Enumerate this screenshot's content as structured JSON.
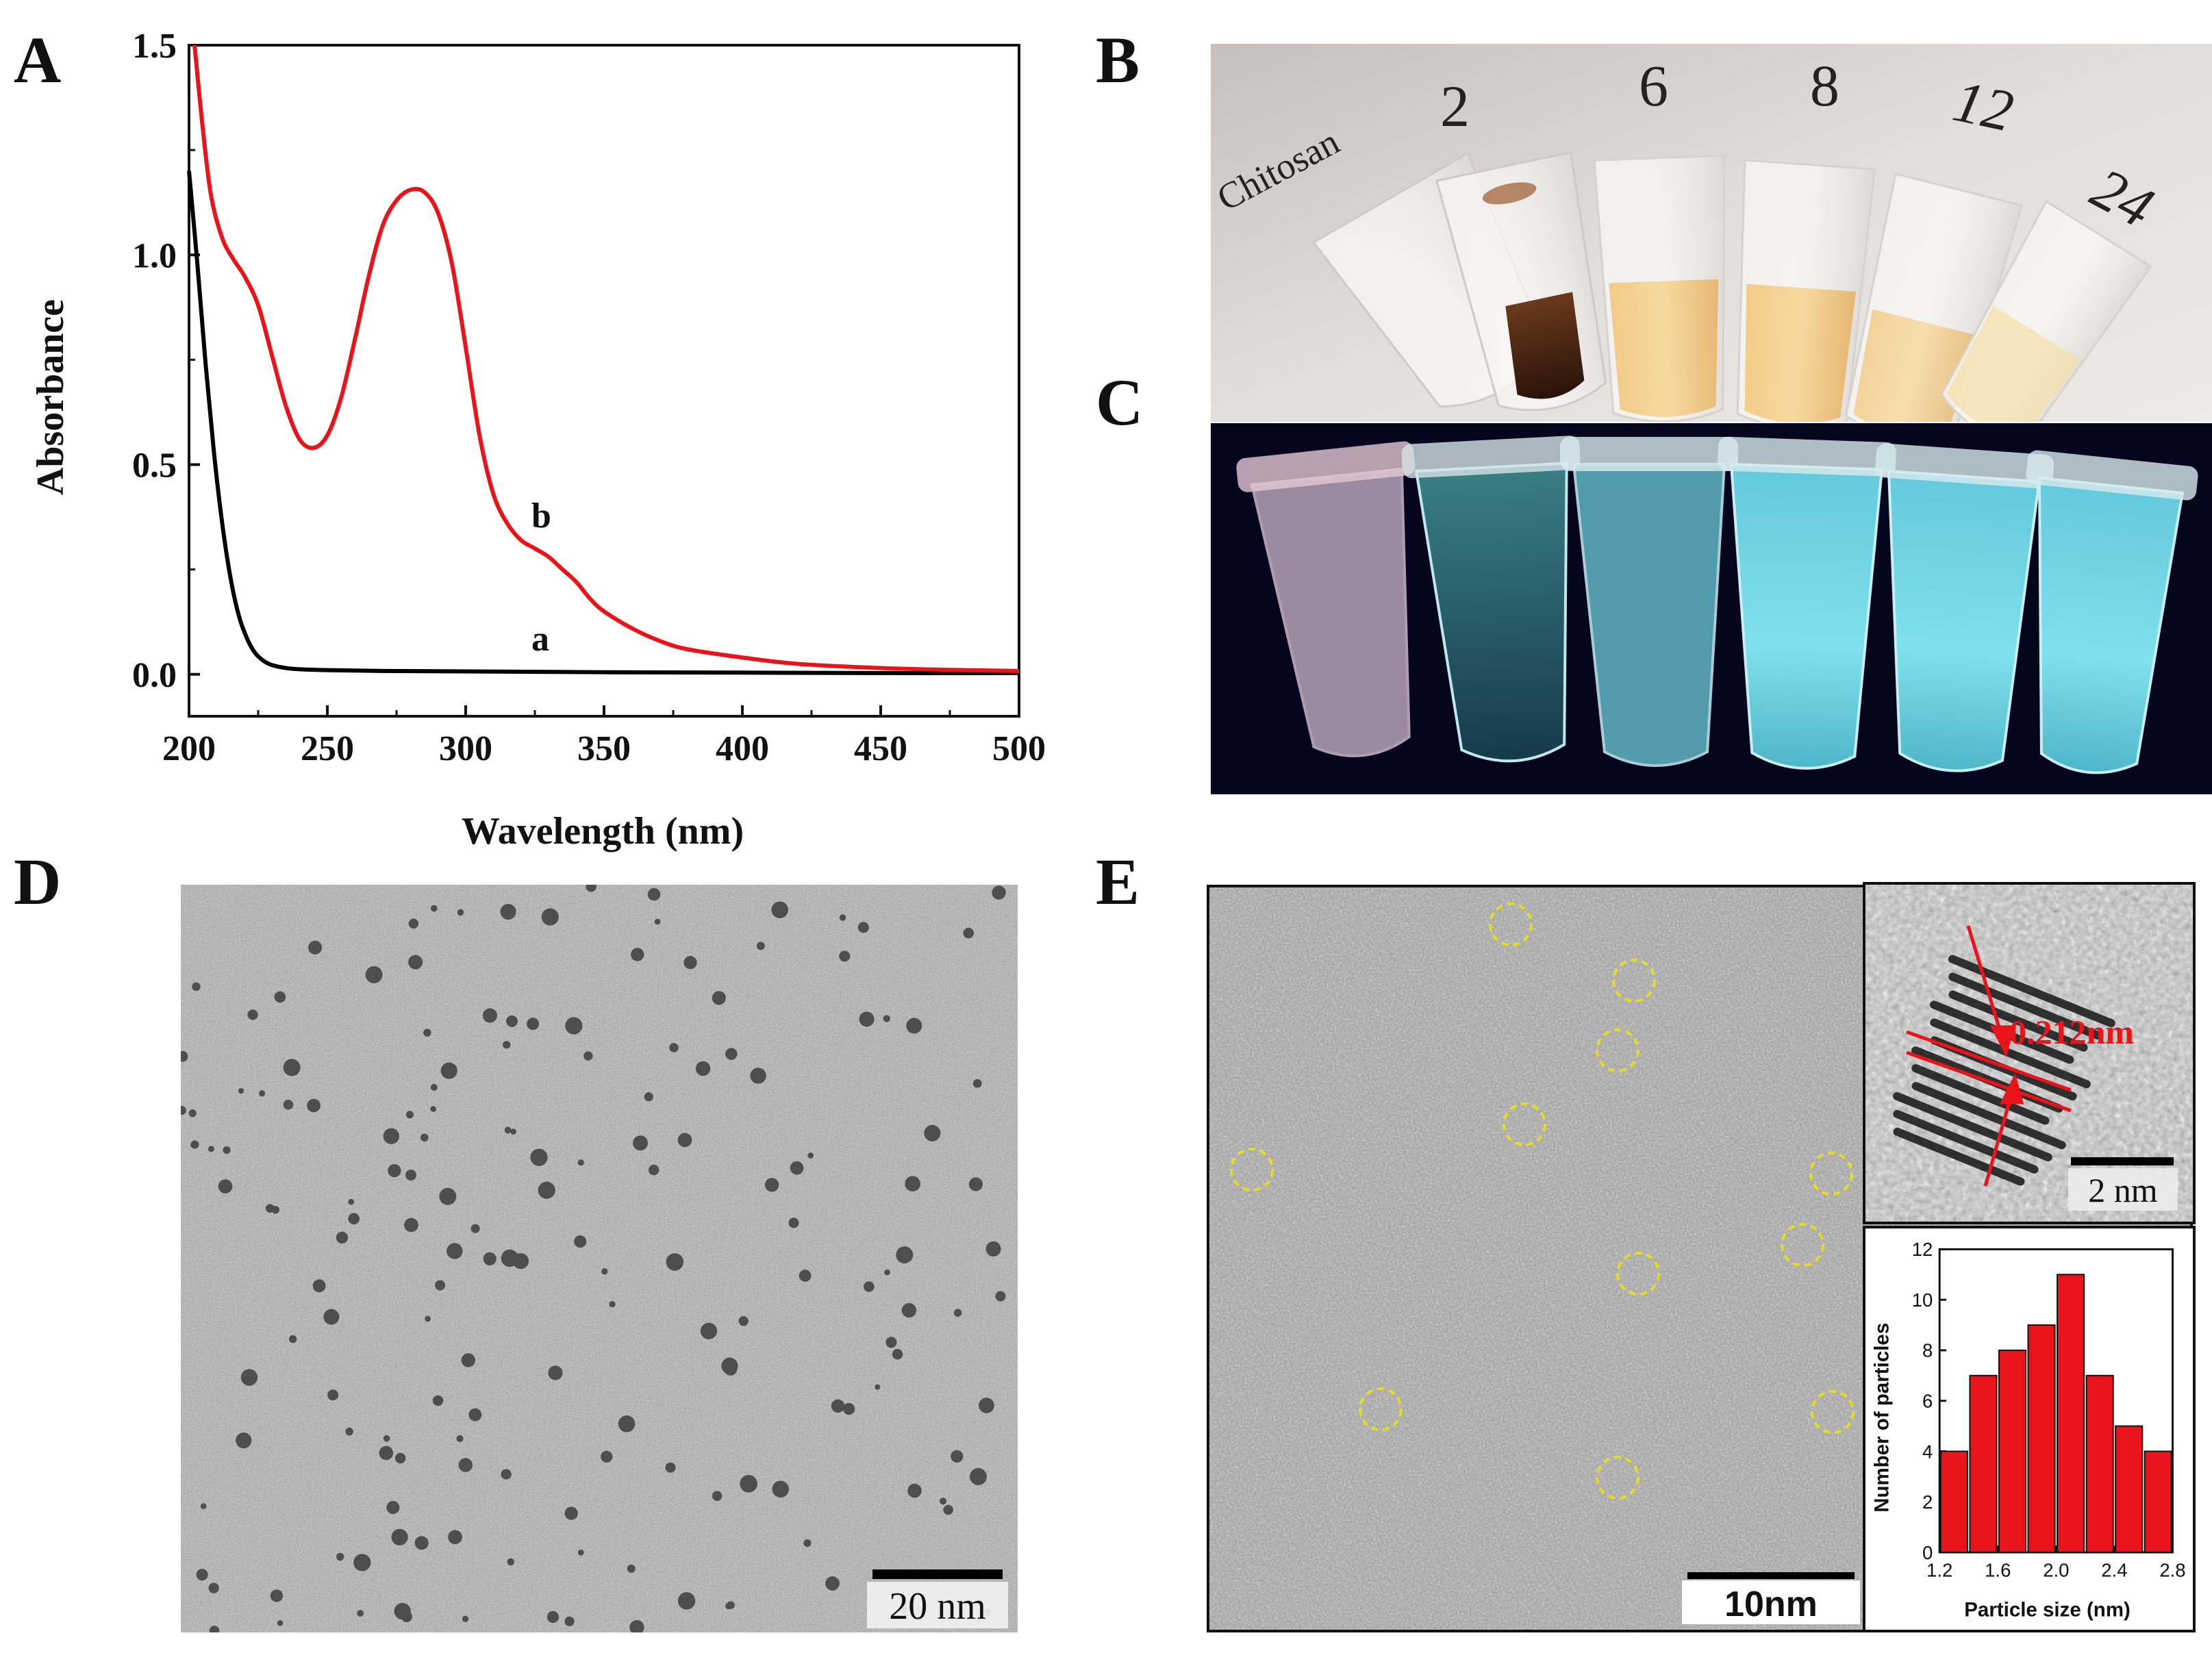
{
  "panels": {
    "A": "A",
    "B": "B",
    "C": "C",
    "D": "D",
    "E": "E"
  },
  "chart_data": [
    {
      "type": "line",
      "panel": "A",
      "xlabel": "Wavelength (nm)",
      "ylabel": "Absorbance",
      "xlim": [
        200,
        500
      ],
      "ylim": [
        -0.1,
        1.5
      ],
      "xticks": [
        "200",
        "250",
        "300",
        "350",
        "400",
        "450",
        "500"
      ],
      "yticks": [
        "0.0",
        "0.5",
        "1.0",
        "1.5"
      ],
      "series": [
        {
          "name": "a",
          "color": "#000000",
          "x": [
            200,
            203,
            206,
            209,
            212,
            215,
            218,
            221,
            224,
            227,
            230,
            235,
            240,
            250,
            270,
            300,
            350,
            400,
            450,
            500
          ],
          "y": [
            1.2,
            0.98,
            0.74,
            0.53,
            0.36,
            0.23,
            0.14,
            0.085,
            0.05,
            0.032,
            0.022,
            0.015,
            0.012,
            0.01,
            0.008,
            0.007,
            0.005,
            0.004,
            0.003,
            0.003
          ]
        },
        {
          "name": "b",
          "color": "#e8141a",
          "x": [
            202,
            205,
            208,
            212,
            216,
            220,
            225,
            230,
            235,
            240,
            245,
            250,
            255,
            260,
            265,
            270,
            275,
            280,
            285,
            290,
            295,
            300,
            305,
            310,
            315,
            320,
            325,
            330,
            335,
            340,
            345,
            350,
            360,
            370,
            380,
            400,
            420,
            450,
            480,
            500
          ],
          "y": [
            1.5,
            1.3,
            1.14,
            1.04,
            0.99,
            0.95,
            0.88,
            0.76,
            0.64,
            0.56,
            0.54,
            0.57,
            0.66,
            0.8,
            0.95,
            1.07,
            1.13,
            1.155,
            1.15,
            1.1,
            0.98,
            0.78,
            0.57,
            0.43,
            0.36,
            0.32,
            0.3,
            0.28,
            0.25,
            0.22,
            0.18,
            0.15,
            0.11,
            0.08,
            0.06,
            0.04,
            0.025,
            0.015,
            0.01,
            0.008
          ]
        }
      ]
    },
    {
      "type": "bar",
      "panel": "E-inset",
      "xlabel": "Particle size (nm)",
      "ylabel": "Number of particles",
      "xlim": [
        1.2,
        2.8
      ],
      "ylim": [
        0,
        12
      ],
      "xticks": [
        "1.2",
        "1.6",
        "2.0",
        "2.4",
        "2.8"
      ],
      "yticks": [
        "0",
        "2",
        "4",
        "6",
        "8",
        "10",
        "12"
      ],
      "categories": [
        1.3,
        1.5,
        1.7,
        1.9,
        2.1,
        2.3,
        2.5,
        2.7
      ],
      "values": [
        4,
        7,
        8,
        9,
        11,
        7,
        5,
        4
      ],
      "bar_color": "#e8141a"
    }
  ],
  "curve_labels": {
    "a": "a",
    "b": "b"
  },
  "tube_labels_B": [
    "Chitosan",
    "2",
    "6",
    "8",
    "12",
    "24"
  ],
  "scalebars": {
    "D": "20 nm",
    "E": "10nm",
    "E_inset": "2 nm"
  },
  "lattice_spacing": "0.212nm"
}
